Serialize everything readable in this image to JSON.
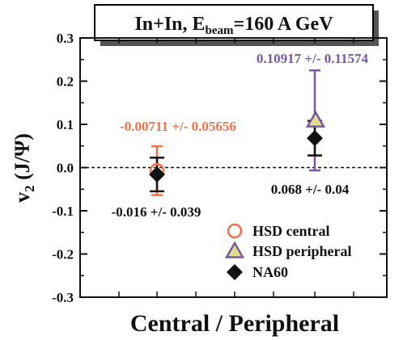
{
  "chart_data": {
    "type": "scatter",
    "title_parts": {
      "main": "In+In, E",
      "sub": "beam",
      "rest": "=160 A GeV"
    },
    "ylabel_parts": {
      "v": "v",
      "sub": "2",
      "rest": " (J/Ψ)"
    },
    "xlabel": "Central / Peripheral",
    "ylim": [
      -0.3,
      0.3
    ],
    "yticks": [
      "-0.3",
      "-0.2",
      "-0.1",
      "0.0",
      "0.1",
      "0.2",
      "0.3"
    ],
    "categories": [
      "Central",
      "Peripheral"
    ],
    "zero_line": true,
    "colors": {
      "hsd_central": "#f07048",
      "hsd_peripheral": "#7858a0",
      "na60": "#111111",
      "triangle_fill": "#e0e090"
    },
    "series": [
      {
        "name": "HSD central",
        "key": "hsd_central",
        "marker": "circle",
        "points": [
          {
            "x": "Central",
            "y": -0.00711,
            "err": 0.05656
          }
        ]
      },
      {
        "name": "HSD peripheral",
        "key": "hsd_peripheral",
        "marker": "triangle",
        "points": [
          {
            "x": "Peripheral",
            "y": 0.10917,
            "err": 0.11574
          }
        ]
      },
      {
        "name": "NA60",
        "key": "na60",
        "marker": "diamond",
        "points": [
          {
            "x": "Central",
            "y": -0.016,
            "err": 0.039
          },
          {
            "x": "Peripheral",
            "y": 0.068,
            "err": 0.04
          }
        ]
      }
    ],
    "annotations": [
      {
        "text": "-0.00711 +/- 0.05656",
        "key": "hsd_central"
      },
      {
        "text": "0.10917 +/- 0.11574",
        "key": "hsd_peripheral"
      },
      {
        "text": "-0.016 +/- 0.039",
        "key": "na60"
      },
      {
        "text": "0.068 +/- 0.04",
        "key": "na60"
      }
    ],
    "legend_position": "bottom-right"
  }
}
